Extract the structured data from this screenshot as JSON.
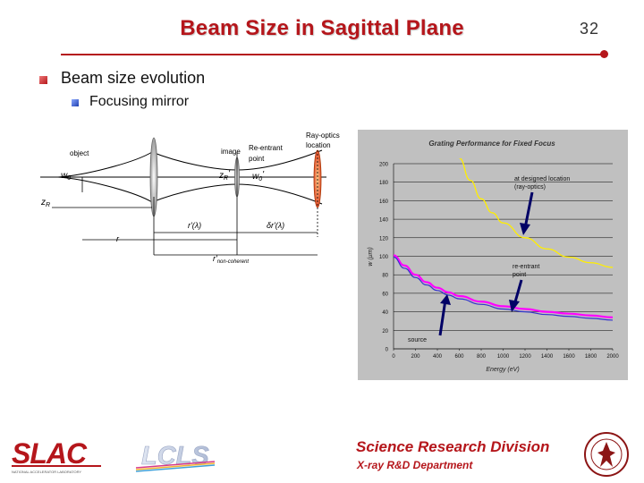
{
  "slide": {
    "title": "Beam Size in Sagittal Plane",
    "page_number": "32",
    "bullet1": "Beam size evolution",
    "bullet2": "Focusing mirror"
  },
  "diagram": {
    "object_label": "object",
    "image_label": "image",
    "re_entrant_label_1": "Re-entrant",
    "re_entrant_label_2": "point",
    "ray_optics_label_1": "Ray-optics",
    "ray_optics_label_2": "location",
    "w0": "w",
    "w0_sub": "0",
    "zR_prime": "z",
    "zR_prime_sub": "R",
    "zR_prime_tick": "'",
    "w0_prime": "w",
    "w0_prime_sub": "0",
    "w0_prime_tick": "'",
    "zR": "z",
    "zR_sub": "R",
    "r_prime_lambda": "r'(λ)",
    "delta_r_prime_lambda": "δr'(λ)",
    "r": "r",
    "r_prime_noncoherent": "r'",
    "r_prime_noncoherent_sub": "non-coherent"
  },
  "chart_data": {
    "type": "line",
    "title": "Grating Performance for Fixed Focus",
    "xlabel": "Energy (eV)",
    "ylabel": "w (μm)",
    "xlim": [
      0,
      2000
    ],
    "ylim": [
      0,
      200
    ],
    "xticks": [
      "0",
      "200",
      "400",
      "600",
      "800",
      "1000",
      "1200",
      "1400",
      "1600",
      "1800",
      "2000"
    ],
    "yticks": [
      "0",
      "20",
      "40",
      "60",
      "80",
      "100",
      "120",
      "140",
      "160",
      "180",
      "200"
    ],
    "colors": {
      "background": "#c0c0c0",
      "plot_area": "#c0c0c0",
      "yellow": "#ffee00",
      "magenta": "#ff00ff",
      "blue": "#3333cc",
      "navy": "#000066"
    },
    "series": [
      {
        "x": [
          600,
          700,
          800,
          900,
          1000,
          1200,
          1400,
          1600,
          1800,
          2000
        ],
        "values": [
          206,
          182,
          162,
          147,
          136,
          120,
          108,
          99,
          93,
          88
        ]
      },
      {
        "x": [
          0,
          100,
          200,
          300,
          400,
          500,
          600,
          800,
          1000,
          1200,
          1400,
          1600,
          1800,
          2000
        ],
        "values": [
          101,
          90,
          80,
          72,
          66,
          61,
          57,
          51,
          46,
          43,
          40,
          38,
          36,
          34
        ]
      },
      {
        "x": [
          0,
          100,
          200,
          300,
          400,
          500,
          600,
          800,
          1000,
          1200,
          1400,
          1600,
          1800,
          2000
        ],
        "values": [
          99,
          87,
          77,
          69,
          63,
          58,
          54,
          48,
          43,
          40,
          37,
          35,
          33,
          31
        ]
      }
    ],
    "annotations": [
      {
        "text_1": "at designed location",
        "text_2": "(ray-optics)"
      },
      {
        "text_1": "re-entrant",
        "text_2": "point"
      },
      {
        "text_1": "source"
      }
    ]
  },
  "footer": {
    "division": "Science Research Division",
    "department": "X-ray R&D Department",
    "logo_slac": "SLAC",
    "logo_slac_sub": "NATIONAL ACCELERATOR LABORATORY",
    "logo_lcls": "LCLS"
  }
}
